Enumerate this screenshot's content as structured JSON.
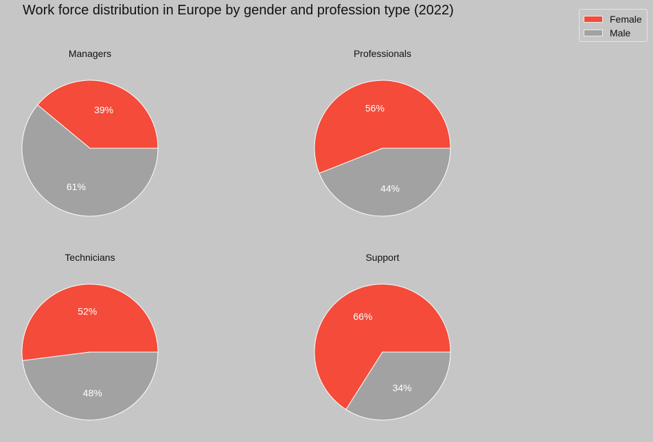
{
  "chart_data": {
    "type": "pie",
    "title": "Work force distribution in Europe by gender and profession type (2022)",
    "series_names": [
      "Female",
      "Male"
    ],
    "colors": {
      "Female": "#f44b3a",
      "Male": "#a2a2a2"
    },
    "legend_position": "top-right",
    "pies": [
      {
        "title": "Managers",
        "values": [
          39,
          61
        ],
        "labels": [
          "39%",
          "61%"
        ]
      },
      {
        "title": "Professionals",
        "values": [
          56,
          44
        ],
        "labels": [
          "56%",
          "44%"
        ]
      },
      {
        "title": "Technicians",
        "values": [
          52,
          48
        ],
        "labels": [
          "52%",
          "48%"
        ]
      },
      {
        "title": "Support",
        "values": [
          66,
          34
        ],
        "labels": [
          "66%",
          "34%"
        ]
      }
    ]
  }
}
